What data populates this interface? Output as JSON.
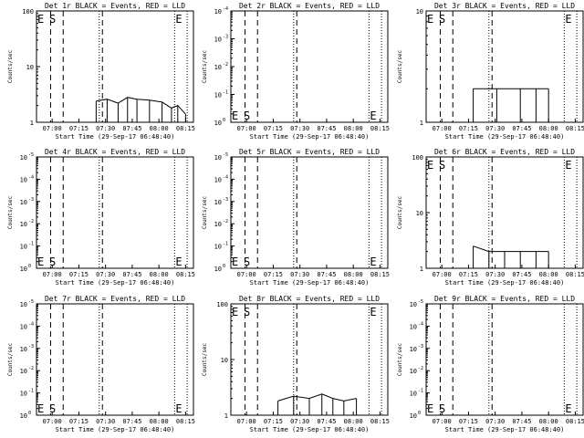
{
  "chart_data": [
    {
      "type": "line",
      "title": "Det 1r BLACK = Events, RED = LLD",
      "ylabel": "Counts/sec",
      "xlabel": "Start Time (29-Sep-17 06:48:40)",
      "x_ticks": [
        "07:00",
        "07:15",
        "07:30",
        "07:45",
        "08:00",
        "08:15"
      ],
      "y_scale": "log",
      "y_ticks": [
        {
          "v": 1,
          "t": "1"
        },
        {
          "v": 10,
          "t": "10"
        },
        {
          "v": 100,
          "t": "100"
        }
      ],
      "ylim": [
        1,
        100
      ],
      "markers": [
        {
          "label": "E",
          "pos": "top"
        },
        {
          "label": "S",
          "pos": "top"
        },
        {
          "label": "E",
          "pos": "top"
        }
      ],
      "series": [
        {
          "values": [
            [
              0.38,
              2.4
            ],
            [
              0.45,
              2.6
            ],
            [
              0.52,
              2.2
            ],
            [
              0.58,
              2.8
            ],
            [
              0.64,
              2.6
            ],
            [
              0.72,
              2.5
            ],
            [
              0.8,
              2.3
            ],
            [
              0.86,
              1.8
            ],
            [
              0.9,
              2.0
            ],
            [
              0.95,
              1.4
            ]
          ]
        }
      ]
    },
    {
      "type": "line",
      "title": "Det 2r BLACK = Events, RED = LLD",
      "ylabel": "Counts/sec",
      "xlabel": "Start Time (29-Sep-17 06:48:40)",
      "x_ticks": [
        "07:00",
        "07:15",
        "07:30",
        "07:45",
        "08:00",
        "08:15"
      ],
      "y_scale": "log",
      "y_ticks": [
        {
          "v": 1,
          "t": "10"
        },
        {
          "v": 10,
          "t": "10"
        },
        {
          "v": 100,
          "t": "10"
        },
        {
          "v": 1000,
          "t": "10"
        },
        {
          "v": 10000,
          "t": "10"
        }
      ],
      "y_ticks_sup": [
        "0",
        "-1",
        "-2",
        "-3",
        "-4"
      ],
      "ylim": [
        1,
        10000
      ],
      "markers": [
        {
          "label": "E",
          "pos": "bottom"
        },
        {
          "label": "S",
          "pos": "bottom"
        },
        {
          "label": "E",
          "pos": "bottom"
        }
      ],
      "series": []
    },
    {
      "type": "line",
      "title": "Det 3r BLACK = Events, RED = LLD",
      "ylabel": "Counts/sec",
      "xlabel": "Start Time (29-Sep-17 06:48:40)",
      "x_ticks": [
        "07:00",
        "07:15",
        "07:30",
        "07:45",
        "08:00",
        "08:15"
      ],
      "y_scale": "log",
      "y_ticks": [
        {
          "v": 1,
          "t": "1"
        },
        {
          "v": 10,
          "t": "10"
        }
      ],
      "ylim": [
        1,
        10
      ],
      "markers": [
        {
          "label": "E",
          "pos": "top"
        },
        {
          "label": "S",
          "pos": "top"
        },
        {
          "label": "E",
          "pos": "top"
        }
      ],
      "series": [
        {
          "values": [
            [
              0.3,
              2.0
            ],
            [
              0.45,
              2.0
            ],
            [
              0.6,
              2.0
            ],
            [
              0.7,
              2.0
            ],
            [
              0.78,
              2.0
            ]
          ]
        }
      ]
    },
    {
      "type": "line",
      "title": "Det 4r BLACK = Events, RED = LLD",
      "ylabel": "Counts/sec",
      "xlabel": "Start Time (29-Sep-17 06:48:40)",
      "x_ticks": [
        "07:00",
        "07:15",
        "07:30",
        "07:45",
        "08:00",
        "08:15"
      ],
      "y_scale": "log",
      "y_ticks": [
        {
          "v": 1,
          "t": "10"
        },
        {
          "v": 10,
          "t": "10"
        },
        {
          "v": 100,
          "t": "10"
        },
        {
          "v": 1000,
          "t": "10"
        },
        {
          "v": 10000,
          "t": "10"
        },
        {
          "v": 100000,
          "t": "10"
        }
      ],
      "y_ticks_sup": [
        "0",
        "-1",
        "-2",
        "-3",
        "-4",
        "-5"
      ],
      "ylim": [
        1,
        100000
      ],
      "markers": [
        {
          "label": "E",
          "pos": "bottom"
        },
        {
          "label": "S",
          "pos": "bottom"
        },
        {
          "label": "E",
          "pos": "bottom"
        }
      ],
      "series": []
    },
    {
      "type": "line",
      "title": "Det 5r BLACK = Events, RED = LLD",
      "ylabel": "Counts/sec",
      "xlabel": "Start Time (29-Sep-17 06:48:40)",
      "x_ticks": [
        "07:00",
        "07:15",
        "07:30",
        "07:45",
        "08:00",
        "08:15"
      ],
      "y_scale": "log",
      "y_ticks": [
        {
          "v": 1,
          "t": "10"
        },
        {
          "v": 10,
          "t": "10"
        },
        {
          "v": 100,
          "t": "10"
        },
        {
          "v": 1000,
          "t": "10"
        },
        {
          "v": 10000,
          "t": "10"
        },
        {
          "v": 100000,
          "t": "10"
        }
      ],
      "y_ticks_sup": [
        "0",
        "-1",
        "-2",
        "-3",
        "-4",
        "-5"
      ],
      "ylim": [
        1,
        100000
      ],
      "markers": [
        {
          "label": "E",
          "pos": "bottom"
        },
        {
          "label": "S",
          "pos": "bottom"
        },
        {
          "label": "E",
          "pos": "bottom"
        }
      ],
      "series": []
    },
    {
      "type": "line",
      "title": "Det 6r BLACK = Events, RED = LLD",
      "ylabel": "Counts/sec",
      "xlabel": "Start Time (29-Sep-17 06:48:40)",
      "x_ticks": [
        "07:00",
        "07:15",
        "07:30",
        "07:45",
        "08:00",
        "08:15"
      ],
      "y_scale": "log",
      "y_ticks": [
        {
          "v": 1,
          "t": "1"
        },
        {
          "v": 10,
          "t": "10"
        },
        {
          "v": 100,
          "t": "100"
        }
      ],
      "ylim": [
        1,
        100
      ],
      "markers": [
        {
          "label": "E",
          "pos": "top"
        },
        {
          "label": "S",
          "pos": "top"
        },
        {
          "label": "E",
          "pos": "top"
        }
      ],
      "series": [
        {
          "values": [
            [
              0.3,
              2.5
            ],
            [
              0.4,
              2.0
            ],
            [
              0.5,
              2.0
            ],
            [
              0.6,
              2.0
            ],
            [
              0.7,
              2.0
            ],
            [
              0.78,
              2.0
            ]
          ]
        }
      ]
    },
    {
      "type": "line",
      "title": "Det 7r BLACK = Events, RED = LLD",
      "ylabel": "Counts/sec",
      "xlabel": "Start Time (29-Sep-17 06:48:40)",
      "x_ticks": [
        "07:00",
        "07:15",
        "07:30",
        "07:45",
        "08:00",
        "08:15"
      ],
      "y_scale": "log",
      "y_ticks": [
        {
          "v": 1,
          "t": "10"
        },
        {
          "v": 10,
          "t": "10"
        },
        {
          "v": 100,
          "t": "10"
        },
        {
          "v": 1000,
          "t": "10"
        },
        {
          "v": 10000,
          "t": "10"
        },
        {
          "v": 100000,
          "t": "10"
        }
      ],
      "y_ticks_sup": [
        "0",
        "-1",
        "-2",
        "-3",
        "-4",
        "-5"
      ],
      "ylim": [
        1,
        100000
      ],
      "markers": [
        {
          "label": "E",
          "pos": "bottom"
        },
        {
          "label": "S",
          "pos": "bottom"
        },
        {
          "label": "E",
          "pos": "bottom"
        }
      ],
      "series": []
    },
    {
      "type": "line",
      "title": "Det 8r BLACK = Events, RED = LLD",
      "ylabel": "Counts/sec",
      "xlabel": "Start Time (29-Sep-17 06:48:40)",
      "x_ticks": [
        "07:00",
        "07:15",
        "07:30",
        "07:45",
        "08:00",
        "08:15"
      ],
      "y_scale": "log",
      "y_ticks": [
        {
          "v": 1,
          "t": "1"
        },
        {
          "v": 10,
          "t": "10"
        },
        {
          "v": 100,
          "t": "100"
        }
      ],
      "ylim": [
        1,
        100
      ],
      "markers": [
        {
          "label": "E",
          "pos": "top"
        },
        {
          "label": "S",
          "pos": "top"
        },
        {
          "label": "E",
          "pos": "top"
        }
      ],
      "series": [
        {
          "values": [
            [
              0.3,
              1.8
            ],
            [
              0.4,
              2.2
            ],
            [
              0.5,
              2.0
            ],
            [
              0.58,
              2.4
            ],
            [
              0.65,
              2.0
            ],
            [
              0.72,
              1.8
            ],
            [
              0.8,
              2.0
            ]
          ]
        }
      ]
    },
    {
      "type": "line",
      "title": "Det 9r BLACK = Events, RED = LLD",
      "ylabel": "Counts/sec",
      "xlabel": "Start Time (29-Sep-17 06:48:40)",
      "x_ticks": [
        "07:00",
        "07:15",
        "07:30",
        "07:45",
        "08:00",
        "08:15"
      ],
      "y_scale": "log",
      "y_ticks": [
        {
          "v": 1,
          "t": "10"
        },
        {
          "v": 10,
          "t": "10"
        },
        {
          "v": 100,
          "t": "10"
        },
        {
          "v": 1000,
          "t": "10"
        },
        {
          "v": 10000,
          "t": "10"
        },
        {
          "v": 100000,
          "t": "10"
        }
      ],
      "y_ticks_sup": [
        "0",
        "-1",
        "-2",
        "-3",
        "-4",
        "-5"
      ],
      "ylim": [
        1,
        100000
      ],
      "markers": [
        {
          "label": "E",
          "pos": "bottom"
        },
        {
          "label": "S",
          "pos": "bottom"
        },
        {
          "label": "E",
          "pos": "bottom"
        }
      ],
      "series": []
    }
  ]
}
